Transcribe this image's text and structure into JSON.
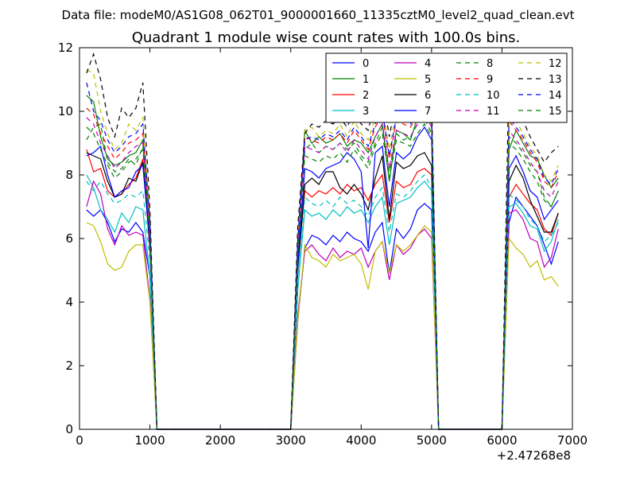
{
  "figure": {
    "suptitle": "Data file: modeM0/AS1G08_062T01_9000001660_11335cztM0_level2_quad_clean.evt",
    "title": "Quadrant 1 module wise count rates with 100.0s bins.",
    "x_offset_label": "+2.47268e8"
  },
  "chart_data": {
    "type": "line",
    "title": "Quadrant 1 module wise count rates with 100.0s bins.",
    "xlabel": "",
    "ylabel": "",
    "xlim": [
      0,
      7000
    ],
    "ylim": [
      0,
      12
    ],
    "x_offset": "+2.47268e8",
    "xticks": [
      0,
      1000,
      2000,
      3000,
      4000,
      5000,
      6000,
      7000
    ],
    "yticks": [
      0,
      2,
      4,
      6,
      8,
      10,
      12
    ],
    "grid": false,
    "legend": {
      "placement": "top-right",
      "columns": 4
    },
    "x": [
      100,
      200,
      300,
      400,
      500,
      600,
      700,
      800,
      900,
      1000,
      1100,
      1200,
      1300,
      1400,
      1500,
      1600,
      1700,
      1800,
      1900,
      2000,
      2100,
      2200,
      2300,
      2400,
      2500,
      2600,
      2700,
      2800,
      2900,
      3000,
      3100,
      3200,
      3300,
      3400,
      3500,
      3600,
      3700,
      3800,
      3900,
      4000,
      4100,
      4200,
      4300,
      4400,
      4500,
      4600,
      4700,
      4800,
      4900,
      5000,
      5100,
      5200,
      5300,
      5400,
      5500,
      5600,
      5700,
      5800,
      5900,
      6000,
      6100,
      6200,
      6300,
      6400,
      6500,
      6600,
      6700,
      6800
    ],
    "series": [
      {
        "name": "0",
        "color": "#0000ff",
        "dash": "solid",
        "values": [
          6.9,
          6.7,
          6.9,
          6.5,
          5.9,
          6.3,
          6.2,
          6.5,
          6.2,
          4.8,
          0,
          0,
          0,
          0,
          0,
          0,
          0,
          0,
          0,
          0,
          0,
          0,
          0,
          0,
          0,
          0,
          0,
          0,
          0,
          0,
          3.4,
          5.7,
          6.1,
          6.0,
          5.8,
          6.1,
          5.9,
          6.2,
          6.0,
          5.9,
          5.6,
          6.2,
          6.5,
          4.9,
          6.3,
          6.0,
          6.3,
          6.9,
          7.1,
          6.9,
          0,
          0,
          0,
          0,
          0,
          0,
          0,
          0,
          0,
          0,
          6.5,
          7.3,
          7.0,
          6.7,
          6.4,
          5.8,
          5.2,
          5.9
        ]
      },
      {
        "name": "1",
        "color": "#008000",
        "dash": "solid",
        "values": [
          10.5,
          10.3,
          9.2,
          8.5,
          8.3,
          8.4,
          8.6,
          8.7,
          9.1,
          6.1,
          0,
          0,
          0,
          0,
          0,
          0,
          0,
          0,
          0,
          0,
          0,
          0,
          0,
          0,
          0,
          0,
          0,
          0,
          0,
          0,
          5.5,
          9.4,
          9.0,
          9.2,
          9.0,
          9.1,
          9.3,
          8.9,
          9.1,
          9.0,
          8.7,
          9.2,
          9.6,
          7.8,
          9.4,
          9.3,
          9.1,
          9.8,
          9.9,
          9.6,
          0,
          0,
          0,
          0,
          0,
          0,
          0,
          0,
          0,
          0,
          8.8,
          9.4,
          9.0,
          8.6,
          8.5,
          8.0,
          7.6,
          7.9
        ]
      },
      {
        "name": "2",
        "color": "#ff0000",
        "dash": "solid",
        "values": [
          8.8,
          8.1,
          8.2,
          7.5,
          7.3,
          7.4,
          7.7,
          7.9,
          8.5,
          5.6,
          0,
          0,
          0,
          0,
          0,
          0,
          0,
          0,
          0,
          0,
          0,
          0,
          0,
          0,
          0,
          0,
          0,
          0,
          0,
          0,
          5.0,
          7.5,
          7.3,
          7.5,
          7.4,
          7.6,
          7.4,
          7.7,
          7.5,
          7.6,
          7.2,
          7.7,
          8.0,
          6.5,
          7.8,
          7.6,
          7.7,
          8.1,
          8.2,
          8.0,
          0,
          0,
          0,
          0,
          0,
          0,
          0,
          0,
          0,
          0,
          7.3,
          7.7,
          7.4,
          7.1,
          6.9,
          6.3,
          6.1,
          6.8
        ]
      },
      {
        "name": "3",
        "color": "#00bfbf",
        "dash": "solid",
        "values": [
          8.0,
          7.6,
          6.9,
          6.6,
          6.2,
          6.8,
          6.5,
          7.0,
          6.9,
          4.8,
          0,
          0,
          0,
          0,
          0,
          0,
          0,
          0,
          0,
          0,
          0,
          0,
          0,
          0,
          0,
          0,
          0,
          0,
          0,
          0,
          4.4,
          6.9,
          6.7,
          6.8,
          6.6,
          6.9,
          6.7,
          7.0,
          6.8,
          6.9,
          6.5,
          7.0,
          7.3,
          5.8,
          7.1,
          7.2,
          7.3,
          7.6,
          7.8,
          7.5,
          0,
          0,
          0,
          0,
          0,
          0,
          0,
          0,
          0,
          0,
          7.0,
          7.1,
          6.8,
          6.4,
          6.3,
          5.6,
          5.9,
          6.6
        ]
      },
      {
        "name": "4",
        "color": "#bf00bf",
        "dash": "solid",
        "values": [
          7.0,
          7.8,
          7.4,
          6.3,
          5.8,
          6.4,
          6.1,
          6.2,
          6.1,
          4.1,
          0,
          0,
          0,
          0,
          0,
          0,
          0,
          0,
          0,
          0,
          0,
          0,
          0,
          0,
          0,
          0,
          0,
          0,
          0,
          0,
          3.6,
          5.6,
          5.8,
          5.5,
          5.3,
          5.7,
          5.4,
          5.6,
          5.5,
          5.7,
          5.1,
          5.6,
          5.9,
          4.7,
          5.8,
          5.5,
          5.7,
          6.1,
          6.3,
          6.0,
          0,
          0,
          0,
          0,
          0,
          0,
          0,
          0,
          0,
          0,
          6.8,
          6.9,
          6.6,
          6.0,
          5.9,
          5.1,
          5.4,
          6.3
        ]
      },
      {
        "name": "5",
        "color": "#bfbf00",
        "dash": "solid",
        "values": [
          6.5,
          6.4,
          5.9,
          5.2,
          5.0,
          5.1,
          5.6,
          5.8,
          5.8,
          4.0,
          0,
          0,
          0,
          0,
          0,
          0,
          0,
          0,
          0,
          0,
          0,
          0,
          0,
          0,
          0,
          0,
          0,
          0,
          0,
          0,
          3.4,
          5.8,
          5.4,
          5.3,
          5.1,
          5.5,
          5.3,
          5.4,
          5.5,
          5.2,
          4.4,
          5.6,
          5.9,
          4.9,
          5.8,
          5.6,
          5.8,
          6.1,
          6.4,
          6.2,
          0,
          0,
          0,
          0,
          0,
          0,
          0,
          0,
          0,
          0,
          6.0,
          5.7,
          5.5,
          5.1,
          5.3,
          4.7,
          4.8,
          4.5
        ]
      },
      {
        "name": "6",
        "color": "#000000",
        "dash": "solid",
        "values": [
          8.7,
          8.6,
          8.5,
          7.8,
          7.3,
          7.4,
          7.9,
          7.8,
          8.4,
          5.9,
          0,
          0,
          0,
          0,
          0,
          0,
          0,
          0,
          0,
          0,
          0,
          0,
          0,
          0,
          0,
          0,
          0,
          0,
          0,
          0,
          5.0,
          7.7,
          7.9,
          7.7,
          8.1,
          8.1,
          7.6,
          7.4,
          7.7,
          7.4,
          6.9,
          7.9,
          8.6,
          6.6,
          8.4,
          8.2,
          8.3,
          8.6,
          8.7,
          8.3,
          0,
          0,
          0,
          0,
          0,
          0,
          0,
          0,
          0,
          0,
          7.8,
          8.3,
          7.9,
          7.2,
          6.7,
          6.2,
          6.2,
          6.8
        ]
      },
      {
        "name": "7",
        "color": "#0000ff",
        "dash": "solid",
        "values": [
          8.6,
          8.7,
          8.9,
          8.0,
          7.3,
          7.5,
          7.6,
          8.1,
          8.3,
          5.8,
          0,
          0,
          0,
          0,
          0,
          0,
          0,
          0,
          0,
          0,
          0,
          0,
          0,
          0,
          0,
          0,
          0,
          0,
          0,
          0,
          5.2,
          8.2,
          8.1,
          7.9,
          8.2,
          8.3,
          8.4,
          8.7,
          8.5,
          8.1,
          5.7,
          8.7,
          8.9,
          7.0,
          8.7,
          8.5,
          8.7,
          9.2,
          9.5,
          9.1,
          0,
          0,
          0,
          0,
          0,
          0,
          0,
          0,
          0,
          0,
          8.2,
          8.6,
          8.1,
          7.5,
          7.3,
          6.6,
          6.9,
          7.2
        ]
      },
      {
        "name": "8",
        "color": "#008000",
        "dash": "dashed",
        "values": [
          9.1,
          9.5,
          9.6,
          8.4,
          8.1,
          8.2,
          8.5,
          8.3,
          8.9,
          6.0,
          0,
          0,
          0,
          0,
          0,
          0,
          0,
          0,
          0,
          0,
          0,
          0,
          0,
          0,
          0,
          0,
          0,
          0,
          0,
          0,
          5.6,
          8.8,
          9.0,
          8.7,
          8.9,
          8.8,
          9.0,
          8.8,
          9.0,
          8.6,
          8.4,
          9.0,
          9.5,
          8.1,
          9.3,
          9.1,
          9.2,
          9.6,
          9.8,
          9.3,
          0,
          0,
          0,
          0,
          0,
          0,
          0,
          0,
          0,
          0,
          9.2,
          9.0,
          8.7,
          8.3,
          8.1,
          7.3,
          7.0,
          7.5
        ]
      },
      {
        "name": "9",
        "color": "#ff0000",
        "dash": "dashed",
        "values": [
          10.1,
          9.9,
          9.3,
          8.9,
          8.5,
          8.7,
          9.0,
          9.1,
          9.3,
          6.3,
          0,
          0,
          0,
          0,
          0,
          0,
          0,
          0,
          0,
          0,
          0,
          0,
          0,
          0,
          0,
          0,
          0,
          0,
          0,
          0,
          5.9,
          9.2,
          9.1,
          9.0,
          9.2,
          9.1,
          9.3,
          9.0,
          9.4,
          9.1,
          8.8,
          9.5,
          9.9,
          8.5,
          9.7,
          9.6,
          9.5,
          9.9,
          10.2,
          9.8,
          0,
          0,
          0,
          0,
          0,
          0,
          0,
          0,
          0,
          0,
          9.7,
          9.4,
          9.1,
          8.7,
          8.4,
          7.8,
          7.6,
          8.1
        ]
      },
      {
        "name": "10",
        "color": "#00bfbf",
        "dash": "dashed",
        "values": [
          7.8,
          7.5,
          7.8,
          7.4,
          7.1,
          7.2,
          7.4,
          7.3,
          7.5,
          5.3,
          0,
          0,
          0,
          0,
          0,
          0,
          0,
          0,
          0,
          0,
          0,
          0,
          0,
          0,
          0,
          0,
          0,
          0,
          0,
          0,
          4.8,
          7.3,
          7.1,
          7.0,
          7.2,
          7.0,
          7.3,
          7.1,
          7.2,
          7.0,
          6.7,
          7.3,
          7.6,
          6.2,
          7.4,
          7.3,
          7.5,
          7.8,
          8.0,
          7.6,
          0,
          0,
          0,
          0,
          0,
          0,
          0,
          0,
          0,
          0,
          7.4,
          7.2,
          7.0,
          6.6,
          6.4,
          5.9,
          6.1,
          6.5
        ]
      },
      {
        "name": "11",
        "color": "#bf00bf",
        "dash": "dashed",
        "values": [
          9.8,
          9.6,
          9.0,
          8.6,
          8.2,
          8.4,
          8.7,
          8.9,
          9.0,
          6.2,
          0,
          0,
          0,
          0,
          0,
          0,
          0,
          0,
          0,
          0,
          0,
          0,
          0,
          0,
          0,
          0,
          0,
          0,
          0,
          0,
          5.7,
          8.9,
          8.8,
          8.7,
          8.9,
          8.8,
          9.0,
          8.7,
          9.1,
          8.8,
          8.5,
          9.2,
          9.6,
          8.2,
          9.4,
          9.3,
          9.2,
          9.6,
          9.9,
          9.5,
          0,
          0,
          0,
          0,
          0,
          0,
          0,
          0,
          0,
          0,
          9.4,
          9.1,
          8.8,
          8.4,
          8.1,
          7.5,
          7.3,
          7.8
        ]
      },
      {
        "name": "12",
        "color": "#bfbf00",
        "dash": "dashed",
        "values": [
          11.3,
          11.2,
          10.0,
          9.3,
          8.8,
          9.0,
          9.6,
          9.4,
          9.8,
          6.6,
          0,
          0,
          0,
          0,
          0,
          0,
          0,
          0,
          0,
          0,
          0,
          0,
          0,
          0,
          0,
          0,
          0,
          0,
          0,
          0,
          6.1,
          9.4,
          9.5,
          9.2,
          9.4,
          9.3,
          9.6,
          9.2,
          9.7,
          9.3,
          9.1,
          9.8,
          10.2,
          8.8,
          10.0,
          9.9,
          9.7,
          10.1,
          10.4,
          10.0,
          0,
          0,
          0,
          0,
          0,
          0,
          0,
          0,
          0,
          0,
          10.0,
          9.7,
          9.3,
          8.9,
          8.6,
          8.0,
          7.8,
          8.3
        ]
      },
      {
        "name": "13",
        "color": "#000000",
        "dash": "dashed",
        "values": [
          11.2,
          11.8,
          11.0,
          9.8,
          9.2,
          10.1,
          9.8,
          10.1,
          10.9,
          6.9,
          0,
          0,
          0,
          0,
          0,
          0,
          0,
          0,
          0,
          0,
          0,
          0,
          0,
          0,
          0,
          0,
          0,
          0,
          0,
          0,
          6.4,
          9.3,
          9.6,
          9.5,
          9.7,
          9.6,
          9.8,
          9.5,
          10.0,
          9.6,
          9.4,
          10.3,
          10.6,
          9.2,
          10.4,
          10.2,
          10.1,
          10.5,
          10.8,
          10.3,
          0,
          0,
          0,
          0,
          0,
          0,
          0,
          0,
          0,
          0,
          11.4,
          10.1,
          9.7,
          9.2,
          8.8,
          8.4,
          8.7,
          8.9
        ]
      },
      {
        "name": "14",
        "color": "#0000ff",
        "dash": "dashed",
        "values": [
          10.9,
          10.0,
          9.7,
          9.1,
          8.7,
          8.9,
          9.2,
          9.3,
          9.6,
          6.5,
          0,
          0,
          0,
          0,
          0,
          0,
          0,
          0,
          0,
          0,
          0,
          0,
          0,
          0,
          0,
          0,
          0,
          0,
          0,
          0,
          6.0,
          9.1,
          9.2,
          9.1,
          9.3,
          9.2,
          9.4,
          9.1,
          9.5,
          9.2,
          8.9,
          9.6,
          10.0,
          8.6,
          9.8,
          9.7,
          9.6,
          10.0,
          10.3,
          9.9,
          0,
          0,
          0,
          0,
          0,
          0,
          0,
          0,
          0,
          0,
          9.8,
          9.5,
          9.2,
          8.8,
          8.5,
          7.9,
          7.7,
          8.2
        ]
      },
      {
        "name": "15",
        "color": "#008000",
        "dash": "dashed",
        "values": [
          9.5,
          9.3,
          8.8,
          8.3,
          7.9,
          8.1,
          8.4,
          8.5,
          8.8,
          6.0,
          0,
          0,
          0,
          0,
          0,
          0,
          0,
          0,
          0,
          0,
          0,
          0,
          0,
          0,
          0,
          0,
          0,
          0,
          0,
          0,
          5.5,
          8.6,
          8.5,
          8.4,
          8.6,
          8.5,
          8.7,
          8.4,
          8.8,
          8.5,
          8.2,
          8.9,
          9.3,
          7.9,
          9.1,
          9.0,
          8.9,
          9.3,
          9.6,
          9.2,
          0,
          0,
          0,
          0,
          0,
          0,
          0,
          0,
          0,
          0,
          9.0,
          8.8,
          8.5,
          8.1,
          7.8,
          7.2,
          7.0,
          7.5
        ]
      }
    ]
  }
}
